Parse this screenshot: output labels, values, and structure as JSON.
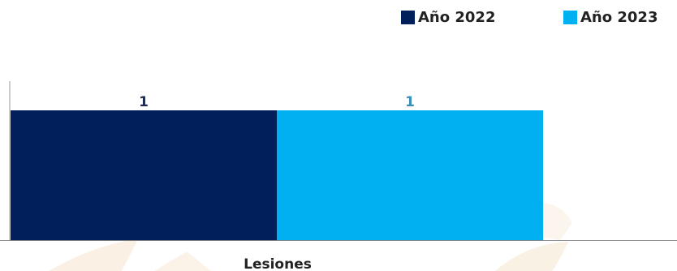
{
  "chart_data": {
    "type": "bar",
    "categories": [
      "Lesiones"
    ],
    "series": [
      {
        "name": "Año 2022",
        "values": [
          1
        ],
        "color": "#001f5b",
        "label_color": "#1a2a50"
      },
      {
        "name": "Año 2023",
        "values": [
          1
        ],
        "color": "#00b0f0",
        "label_color": "#3a8fb5"
      }
    ],
    "ylim": [
      0,
      1.6
    ],
    "xlabel": "",
    "ylabel": "",
    "grid": false,
    "legend_position": "top-right",
    "watermark_color": "#f3d7b8"
  }
}
